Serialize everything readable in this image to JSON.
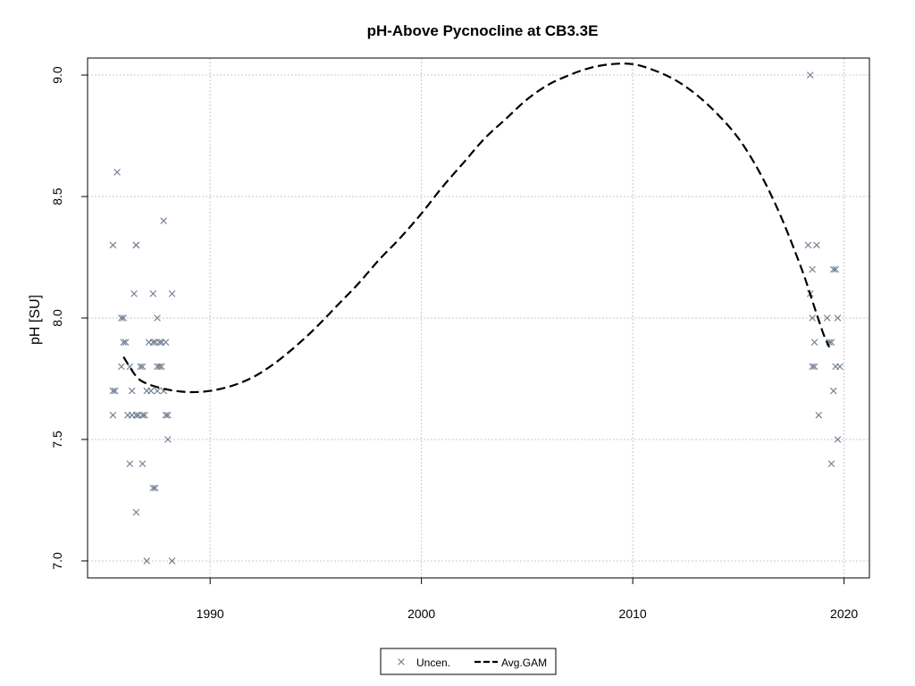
{
  "chart_data": {
    "type": "scatter",
    "title": "pH-Above Pycnocline at CB3.3E",
    "xlabel": "",
    "ylabel": "pH [SU]",
    "xlim": [
      1984.2,
      2021.2
    ],
    "ylim": [
      6.93,
      9.07
    ],
    "x_ticks": [
      1990,
      2000,
      2010,
      2020
    ],
    "x_tick_labels": [
      "1990",
      "2000",
      "2010",
      "2020"
    ],
    "y_ticks": [
      7.0,
      7.5,
      8.0,
      8.5,
      9.0
    ],
    "y_tick_labels": [
      "7.0",
      "7.5",
      "8.0",
      "8.5",
      "9.0"
    ],
    "grid": true,
    "legend_position": "bottom-center",
    "legend": [
      {
        "label": "Uncen.",
        "marker": "x",
        "color": "#6b7a8f"
      },
      {
        "label": "Avg.GAM",
        "line": "dashed",
        "color": "#000000"
      }
    ],
    "series": [
      {
        "name": "Uncen.",
        "color": "#6b7a8f",
        "marker": "x",
        "points": [
          [
            1985.4,
            8.3
          ],
          [
            1985.6,
            8.6
          ],
          [
            1985.4,
            7.7
          ],
          [
            1985.5,
            7.7
          ],
          [
            1985.4,
            7.6
          ],
          [
            1985.8,
            8.0
          ],
          [
            1985.9,
            8.0
          ],
          [
            1985.9,
            7.9
          ],
          [
            1986.0,
            7.9
          ],
          [
            1985.8,
            7.8
          ],
          [
            1986.2,
            7.8
          ],
          [
            1986.1,
            7.6
          ],
          [
            1986.3,
            7.6
          ],
          [
            1986.3,
            7.7
          ],
          [
            1986.2,
            7.4
          ],
          [
            1986.5,
            8.3
          ],
          [
            1986.5,
            8.3
          ],
          [
            1986.4,
            8.1
          ],
          [
            1986.5,
            7.6
          ],
          [
            1986.6,
            7.6
          ],
          [
            1986.5,
            7.2
          ],
          [
            1986.7,
            7.8
          ],
          [
            1986.8,
            7.8
          ],
          [
            1986.8,
            7.6
          ],
          [
            1986.9,
            7.6
          ],
          [
            1986.8,
            7.4
          ],
          [
            1987.0,
            7.7
          ],
          [
            1987.0,
            7.0
          ],
          [
            1987.1,
            7.9
          ],
          [
            1987.2,
            7.7
          ],
          [
            1987.3,
            8.1
          ],
          [
            1987.3,
            7.9
          ],
          [
            1987.4,
            7.9
          ],
          [
            1987.3,
            7.3
          ],
          [
            1987.5,
            8.0
          ],
          [
            1987.5,
            7.8
          ],
          [
            1987.6,
            7.8
          ],
          [
            1987.4,
            7.3
          ],
          [
            1987.5,
            7.7
          ],
          [
            1987.6,
            7.9
          ],
          [
            1987.7,
            7.9
          ],
          [
            1987.7,
            7.8
          ],
          [
            1987.8,
            8.4
          ],
          [
            1987.8,
            7.7
          ],
          [
            1987.9,
            7.9
          ],
          [
            1988.0,
            7.6
          ],
          [
            1987.9,
            7.6
          ],
          [
            1988.0,
            7.5
          ],
          [
            1988.2,
            8.1
          ],
          [
            1988.2,
            7.0
          ],
          [
            2018.3,
            8.3
          ],
          [
            2018.4,
            9.0
          ],
          [
            2018.4,
            8.1
          ],
          [
            2018.5,
            8.2
          ],
          [
            2018.5,
            8.0
          ],
          [
            2018.5,
            7.8
          ],
          [
            2018.6,
            7.8
          ],
          [
            2018.7,
            8.3
          ],
          [
            2018.6,
            7.9
          ],
          [
            2018.8,
            7.6
          ],
          [
            2019.2,
            8.0
          ],
          [
            2019.3,
            7.9
          ],
          [
            2019.4,
            7.9
          ],
          [
            2019.5,
            8.2
          ],
          [
            2019.6,
            8.2
          ],
          [
            2019.5,
            7.7
          ],
          [
            2019.4,
            7.4
          ],
          [
            2019.6,
            7.8
          ],
          [
            2019.7,
            8.0
          ],
          [
            2019.8,
            7.8
          ],
          [
            2019.7,
            7.5
          ]
        ]
      },
      {
        "name": "Avg.GAM",
        "color": "#000000",
        "line": "dashed",
        "points": [
          [
            1985.9,
            7.84
          ],
          [
            1986.5,
            7.76
          ],
          [
            1987.0,
            7.73
          ],
          [
            1988.0,
            7.705
          ],
          [
            1989.0,
            7.695
          ],
          [
            1990.0,
            7.7
          ],
          [
            1991.0,
            7.72
          ],
          [
            1992.0,
            7.755
          ],
          [
            1993.0,
            7.81
          ],
          [
            1994.0,
            7.88
          ],
          [
            1995.0,
            7.96
          ],
          [
            1996.0,
            8.05
          ],
          [
            1997.0,
            8.14
          ],
          [
            1998.0,
            8.24
          ],
          [
            1999.0,
            8.33
          ],
          [
            2000.0,
            8.43
          ],
          [
            2001.0,
            8.54
          ],
          [
            2002.0,
            8.64
          ],
          [
            2003.0,
            8.74
          ],
          [
            2004.0,
            8.82
          ],
          [
            2005.0,
            8.9
          ],
          [
            2006.0,
            8.96
          ],
          [
            2007.0,
            9.0
          ],
          [
            2008.0,
            9.03
          ],
          [
            2009.0,
            9.045
          ],
          [
            2010.0,
            9.045
          ],
          [
            2011.0,
            9.02
          ],
          [
            2012.0,
            8.98
          ],
          [
            2013.0,
            8.92
          ],
          [
            2014.0,
            8.84
          ],
          [
            2015.0,
            8.74
          ],
          [
            2016.0,
            8.6
          ],
          [
            2017.0,
            8.42
          ],
          [
            2018.0,
            8.2
          ],
          [
            2018.5,
            8.07
          ],
          [
            2019.0,
            7.94
          ],
          [
            2019.3,
            7.88
          ]
        ]
      }
    ]
  }
}
